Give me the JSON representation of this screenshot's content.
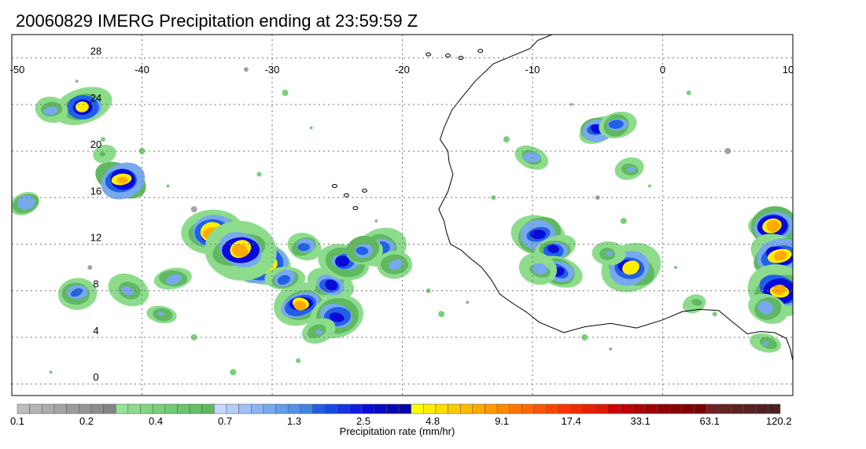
{
  "title": "20060829 IMERG Precipitation ending at 23:59:59 Z",
  "map": {
    "lon_range": [
      -50,
      10
    ],
    "lat_range": [
      -1,
      30
    ],
    "lon_ticks": [
      "-50",
      "-40",
      "-30",
      "-20",
      "-10",
      "0",
      "10"
    ],
    "lat_ticks": [
      "0",
      "4",
      "8",
      "12",
      "16",
      "20",
      "24",
      "28"
    ],
    "grid": true
  },
  "colorbar": {
    "label": "Precipitation rate (mm/hr)",
    "tick_labels": [
      "0.1",
      "0.2",
      "0.4",
      "0.7",
      "1.3",
      "2.5",
      "4.8",
      "9.1",
      "17.4",
      "33.1",
      "63.1",
      "120.2"
    ],
    "colors": [
      "#bdbdbd",
      "#b4b4b4",
      "#acacac",
      "#a4a4a4",
      "#9c9c9c",
      "#949494",
      "#8c8c8c",
      "#848484",
      "#96e296",
      "#8cdc8c",
      "#82d682",
      "#78d078",
      "#72ca72",
      "#6cc46c",
      "#66be66",
      "#60b860",
      "#c8d8ff",
      "#b4ccfa",
      "#a0c0f6",
      "#8cb4f2",
      "#78a8ee",
      "#649ceb",
      "#5090e8",
      "#3c84e6",
      "#2060e8",
      "#1a4ae4",
      "#1434e0",
      "#0e1edc",
      "#0a0ad8",
      "#0808c8",
      "#0606b8",
      "#0404a8",
      "#ffff00",
      "#ffee00",
      "#ffdd00",
      "#ffcc00",
      "#ffbb00",
      "#ffaa00",
      "#ff9900",
      "#ff8800",
      "#ff7700",
      "#ff6600",
      "#ff5500",
      "#ff4400",
      "#ff3300",
      "#f42a00",
      "#e82000",
      "#dc1a00",
      "#d00000",
      "#c00000",
      "#b00000",
      "#a00000",
      "#900000",
      "#880000",
      "#800000",
      "#780000",
      "#702020",
      "#682020",
      "#602020",
      "#582020",
      "#502020",
      "#482020"
    ]
  },
  "precip_cells": [
    {
      "lon": -34.5,
      "lat": 13.0,
      "max": 10.0
    },
    {
      "lon": -30.8,
      "lat": 10.3,
      "max": 12.0
    },
    {
      "lon": -32.5,
      "lat": 11.5,
      "max": 10.0
    },
    {
      "lon": -27.8,
      "lat": 6.8,
      "max": 7.0
    },
    {
      "lon": -25.5,
      "lat": 8.5,
      "max": 3.0
    },
    {
      "lon": -24.5,
      "lat": 10.5,
      "max": 3.0
    },
    {
      "lon": -21.5,
      "lat": 11.8,
      "max": 2.5
    },
    {
      "lon": -20.5,
      "lat": 10.2,
      "max": 1.5
    },
    {
      "lon": -27.5,
      "lat": 11.8,
      "max": 2.0
    },
    {
      "lon": -23.0,
      "lat": 11.5,
      "max": 2.0
    },
    {
      "lon": -25.0,
      "lat": 5.8,
      "max": 4.0
    },
    {
      "lon": -26.5,
      "lat": 4.5,
      "max": 1.0
    },
    {
      "lon": -29.0,
      "lat": 9.0,
      "max": 2.0
    },
    {
      "lon": -41.5,
      "lat": 17.5,
      "max": 7.0
    },
    {
      "lon": -44.5,
      "lat": 23.8,
      "max": 5.0
    },
    {
      "lon": -47.0,
      "lat": 23.5,
      "max": 1.5
    },
    {
      "lon": -49.0,
      "lat": 15.5,
      "max": 1.5
    },
    {
      "lon": -45.0,
      "lat": 7.8,
      "max": 2.0
    },
    {
      "lon": -41.0,
      "lat": 8.0,
      "max": 1.5
    },
    {
      "lon": -37.5,
      "lat": 9.0,
      "max": 1.5
    },
    {
      "lon": -38.5,
      "lat": 6.0,
      "max": 1.0
    },
    {
      "lon": -43.0,
      "lat": 19.8,
      "max": 0.6
    },
    {
      "lon": -10.0,
      "lat": 19.5,
      "max": 1.5
    },
    {
      "lon": -9.5,
      "lat": 12.8,
      "max": 4.0
    },
    {
      "lon": -8.3,
      "lat": 11.5,
      "max": 3.0
    },
    {
      "lon": -8.0,
      "lat": 9.7,
      "max": 3.0
    },
    {
      "lon": -9.5,
      "lat": 9.8,
      "max": 1.5
    },
    {
      "lon": -5.0,
      "lat": 21.8,
      "max": 3.0
    },
    {
      "lon": -3.5,
      "lat": 22.3,
      "max": 2.0
    },
    {
      "lon": -2.5,
      "lat": 10.0,
      "max": 6.0
    },
    {
      "lon": -4.2,
      "lat": 11.2,
      "max": 1.0
    },
    {
      "lon": -2.5,
      "lat": 18.5,
      "max": 1.0
    },
    {
      "lon": 8.5,
      "lat": 13.5,
      "max": 8.0
    },
    {
      "lon": 9.0,
      "lat": 11.0,
      "max": 8.0
    },
    {
      "lon": 9.0,
      "lat": 8.0,
      "max": 8.0
    },
    {
      "lon": 8.0,
      "lat": 6.5,
      "max": 1.5
    },
    {
      "lon": 8.0,
      "lat": 3.5,
      "max": 1.0
    },
    {
      "lon": 2.5,
      "lat": 7.0,
      "max": 0.7
    }
  ]
}
